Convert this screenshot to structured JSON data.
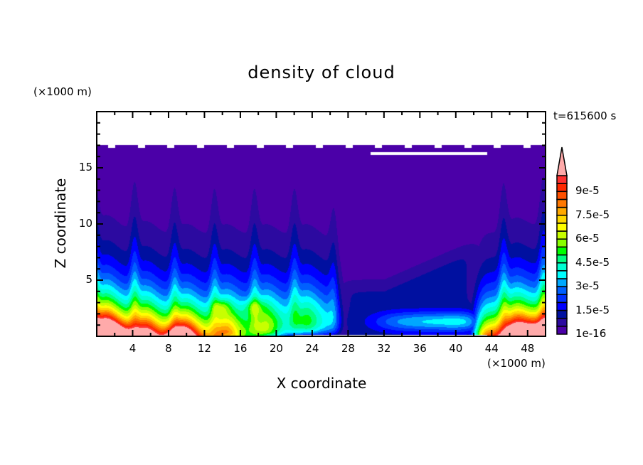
{
  "chart_data": {
    "type": "heatmap",
    "title": "density of cloud",
    "xlabel": "X coordinate",
    "ylabel": "Z coordinate",
    "x_unit": "(×1000 m)",
    "y_unit": "(×1000 m)",
    "annotation": "t=615600 s",
    "xlim": [
      0,
      50
    ],
    "ylim": [
      0,
      20
    ],
    "x_ticks": [
      4,
      8,
      12,
      16,
      20,
      24,
      28,
      32,
      36,
      40,
      44,
      48
    ],
    "y_ticks": [
      5,
      10,
      15
    ],
    "colorbar": {
      "levels": [
        1e-16,
        5e-06,
        1e-05,
        1.5e-05,
        2e-05,
        2.5e-05,
        3e-05,
        3.5e-05,
        4e-05,
        4.5e-05,
        5e-05,
        5.5e-05,
        6e-05,
        6.5e-05,
        7e-05,
        7.5e-05,
        8e-05,
        8.5e-05,
        9e-05,
        9.5e-05,
        0.0001
      ],
      "tick_labels": [
        "1e-16",
        "1.5e-5",
        "3e-5",
        "4.5e-5",
        "6e-5",
        "7.5e-5",
        "9e-5"
      ],
      "tick_values": [
        1e-16,
        1.5e-05,
        3e-05,
        4.5e-05,
        6e-05,
        7.5e-05,
        9e-05
      ],
      "colors": [
        "#4b00a8",
        "#2c0aa0",
        "#0010a0",
        "#0000ff",
        "#0030ff",
        "#0060ff",
        "#00a8ff",
        "#00ffff",
        "#00ffd2",
        "#00ff80",
        "#00ff00",
        "#88ff00",
        "#c8ff00",
        "#ffff00",
        "#ffd800",
        "#ffa800",
        "#ff7800",
        "#ff5000",
        "#ff2800",
        "#ff3030"
      ],
      "overflow_color": "#ffaaaa",
      "position": "right"
    },
    "grid": false
  }
}
